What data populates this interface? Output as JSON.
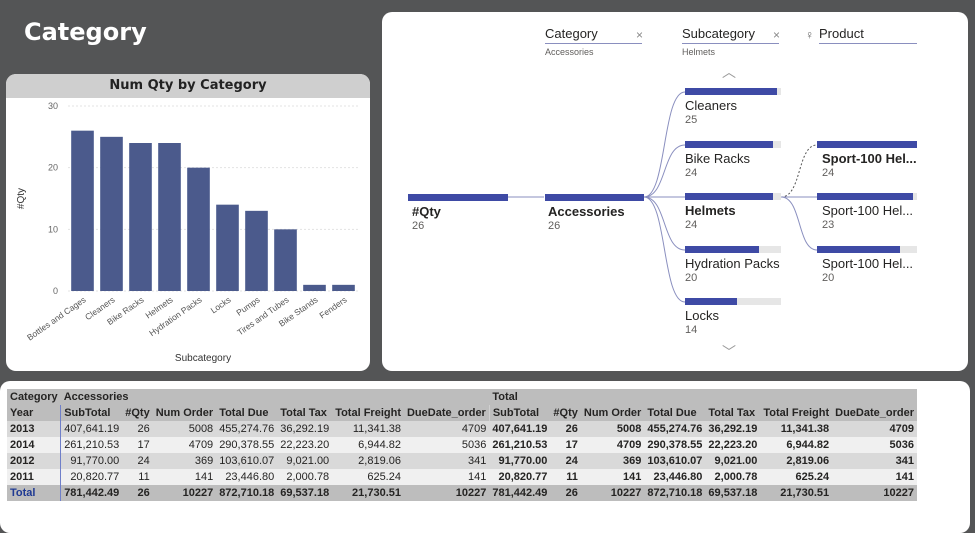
{
  "page": {
    "title": "Category"
  },
  "bar_chart": {
    "header": "Num Qty by Category",
    "ylabel": "#Qty",
    "xlabel": "Subcategory",
    "yticks": [
      "30",
      "20",
      "10",
      "0"
    ],
    "bar_color": "#4b5a8c"
  },
  "chart_data": {
    "type": "bar",
    "title": "Num Qty by Category",
    "xlabel": "Subcategory",
    "ylabel": "#Qty",
    "ylim": [
      0,
      30
    ],
    "categories": [
      "Bottles and Cages",
      "Cleaners",
      "Bike Racks",
      "Helmets",
      "Hydration Packs",
      "Locks",
      "Pumps",
      "Tires and Tubes",
      "Bike Stands",
      "Fenders"
    ],
    "values": [
      26,
      25,
      24,
      24,
      20,
      14,
      13,
      10,
      1,
      1
    ]
  },
  "tree": {
    "levels": [
      {
        "name": "Category",
        "selected": "Accessories"
      },
      {
        "name": "Subcategory",
        "selected": "Helmets"
      },
      {
        "name": "Product",
        "selected": ""
      }
    ],
    "root": {
      "label": "#Qty",
      "value": "26"
    },
    "category": {
      "label": "Accessories",
      "value": "26"
    },
    "subcategories": [
      {
        "label": "Cleaners",
        "value": "25",
        "frac": 0.96
      },
      {
        "label": "Bike Racks",
        "value": "24",
        "frac": 0.92
      },
      {
        "label": "Helmets",
        "value": "24",
        "frac": 0.92
      },
      {
        "label": "Hydration Packs",
        "value": "20",
        "frac": 0.77
      },
      {
        "label": "Locks",
        "value": "14",
        "frac": 0.54
      }
    ],
    "products": [
      {
        "label": "Sport-100 Hel...",
        "value": "24",
        "frac": 1.0
      },
      {
        "label": "Sport-100 Hel...",
        "value": "23",
        "frac": 0.96
      },
      {
        "label": "Sport-100 Hel...",
        "value": "20",
        "frac": 0.83
      }
    ]
  },
  "matrix": {
    "col1_header": "Category",
    "group1": "Accessories",
    "group2": "Total",
    "row_header": "Year",
    "columns": [
      "SubTotal",
      "#Qty",
      "Num Order",
      "Total Due",
      "Total Tax",
      "Total Freight",
      "DueDate_order"
    ],
    "rows": [
      {
        "year": "2013",
        "a": [
          "407,641.19",
          "26",
          "5008",
          "455,274.76",
          "36,292.19",
          "11,341.38",
          "4709"
        ],
        "t": [
          "407,641.19",
          "26",
          "5008",
          "455,274.76",
          "36,292.19",
          "11,341.38",
          "4709"
        ]
      },
      {
        "year": "2014",
        "a": [
          "261,210.53",
          "17",
          "4709",
          "290,378.55",
          "22,223.20",
          "6,944.82",
          "5036"
        ],
        "t": [
          "261,210.53",
          "17",
          "4709",
          "290,378.55",
          "22,223.20",
          "6,944.82",
          "5036"
        ]
      },
      {
        "year": "2012",
        "a": [
          "91,770.00",
          "24",
          "369",
          "103,610.07",
          "9,021.00",
          "2,819.06",
          "341"
        ],
        "t": [
          "91,770.00",
          "24",
          "369",
          "103,610.07",
          "9,021.00",
          "2,819.06",
          "341"
        ]
      },
      {
        "year": "2011",
        "a": [
          "20,820.77",
          "11",
          "141",
          "23,446.80",
          "2,000.78",
          "625.24",
          "141"
        ],
        "t": [
          "20,820.77",
          "11",
          "141",
          "23,446.80",
          "2,000.78",
          "625.24",
          "141"
        ]
      }
    ],
    "total": {
      "label": "Total",
      "a": [
        "781,442.49",
        "26",
        "10227",
        "872,710.18",
        "69,537.18",
        "21,730.51",
        "10227"
      ],
      "t": [
        "781,442.49",
        "26",
        "10227",
        "872,710.18",
        "69,537.18",
        "21,730.51",
        "10227"
      ]
    }
  }
}
